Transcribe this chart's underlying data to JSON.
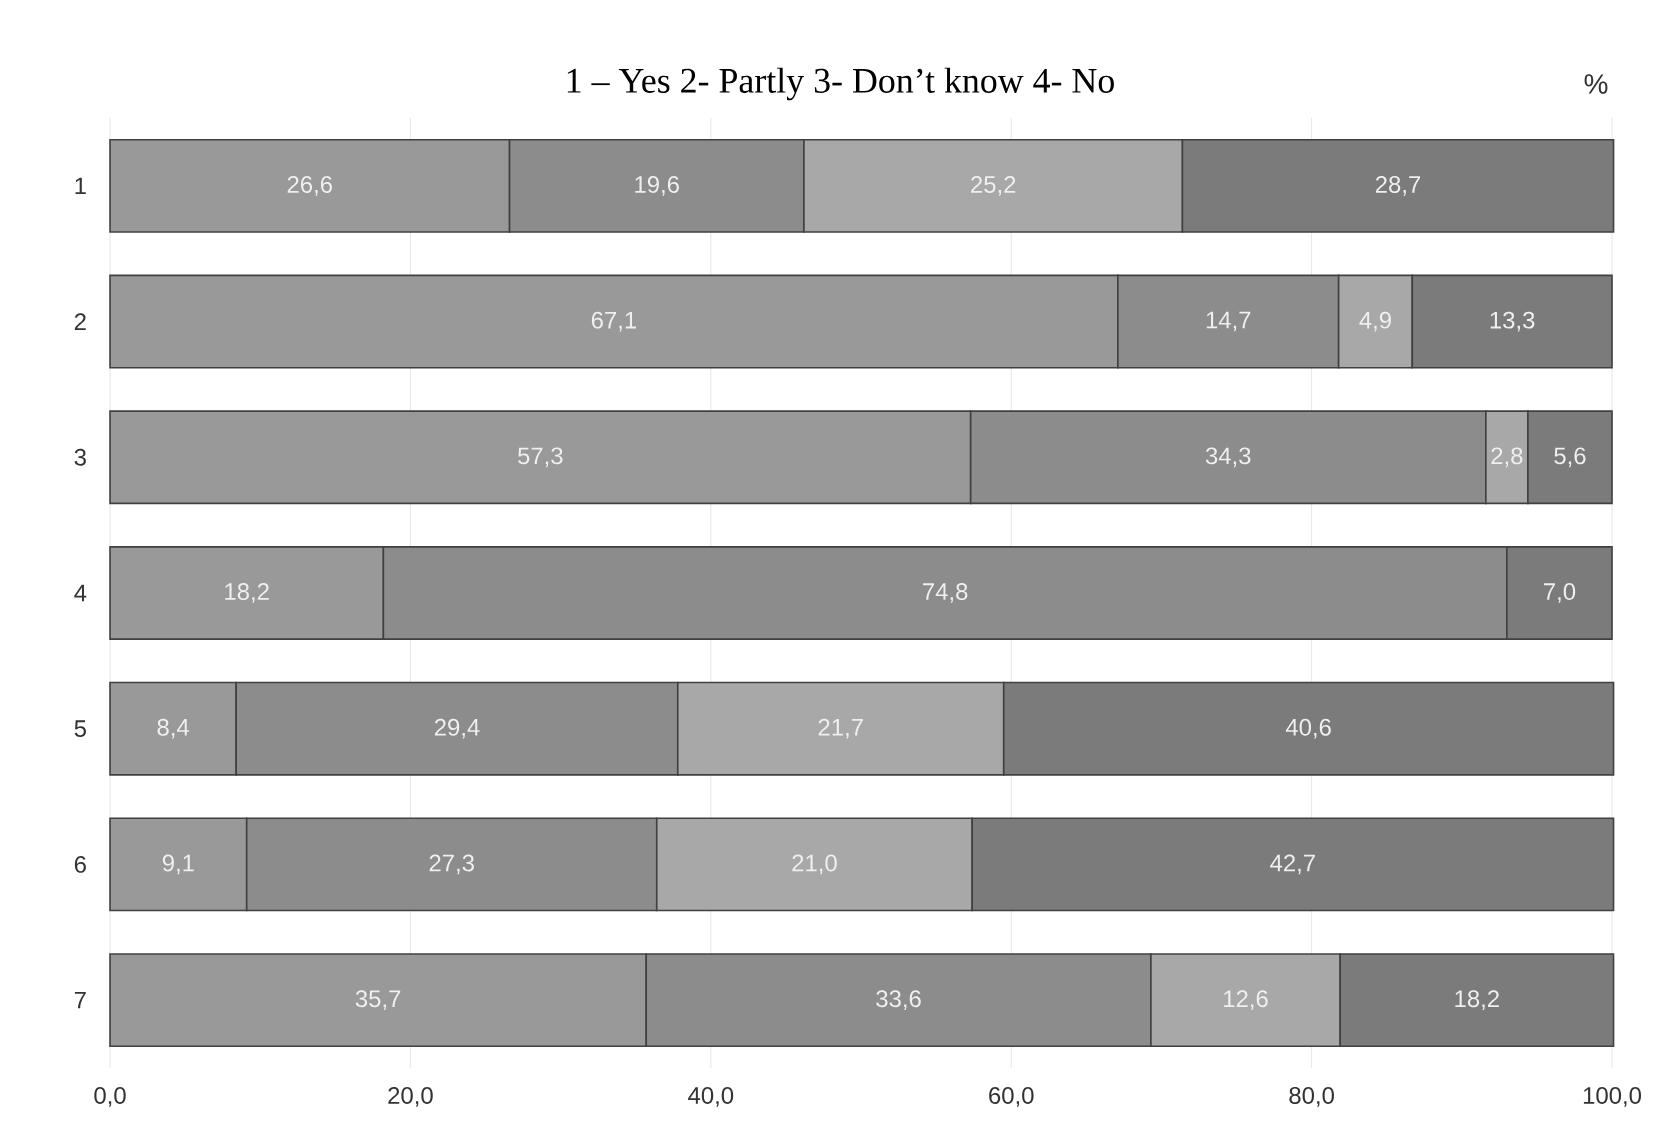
{
  "chart_data": {
    "type": "bar",
    "orientation": "horizontal",
    "stacked": true,
    "title": "1 – Yes 2- Partly 3- Don’t know 4- No",
    "annotations": [
      "%"
    ],
    "categories": [
      "1",
      "2",
      "3",
      "4",
      "5",
      "6",
      "7"
    ],
    "series": [
      {
        "color": "#999999",
        "values": [
          26.6,
          67.1,
          57.3,
          18.2,
          8.4,
          9.1,
          35.7
        ],
        "value_labels": [
          "26,6",
          "67,1",
          "57,3",
          "18,2",
          "8,4",
          "9,1",
          "35,7"
        ]
      },
      {
        "color": "#8c8c8c",
        "values": [
          19.6,
          14.7,
          34.3,
          74.8,
          29.4,
          27.3,
          33.6
        ],
        "value_labels": [
          "19,6",
          "14,7",
          "34,3",
          "74,8",
          "29,4",
          "27,3",
          "33,6"
        ]
      },
      {
        "color": "#a8a8a8",
        "values": [
          25.2,
          4.9,
          2.8,
          null,
          21.7,
          21.0,
          12.6
        ],
        "value_labels": [
          "25,2",
          "4,9",
          "2,8",
          null,
          "21,7",
          "21,0",
          "12,6"
        ]
      },
      {
        "color": "#7b7b7b",
        "values": [
          28.7,
          13.3,
          5.6,
          7.0,
          40.6,
          42.7,
          18.2
        ],
        "value_labels": [
          "28,7",
          "13,3",
          "5,6",
          "7,0",
          "40,6",
          "42,7",
          "18,2"
        ]
      }
    ],
    "xlim": [
      0,
      100
    ],
    "xticks": [
      {
        "value": 0,
        "label": "0,0"
      },
      {
        "value": 20,
        "label": "20,0"
      },
      {
        "value": 40,
        "label": "40,0"
      },
      {
        "value": 60,
        "label": "60,0"
      },
      {
        "value": 80,
        "label": "80,0"
      },
      {
        "value": 100,
        "label": "100,0"
      }
    ],
    "grid": "x"
  }
}
